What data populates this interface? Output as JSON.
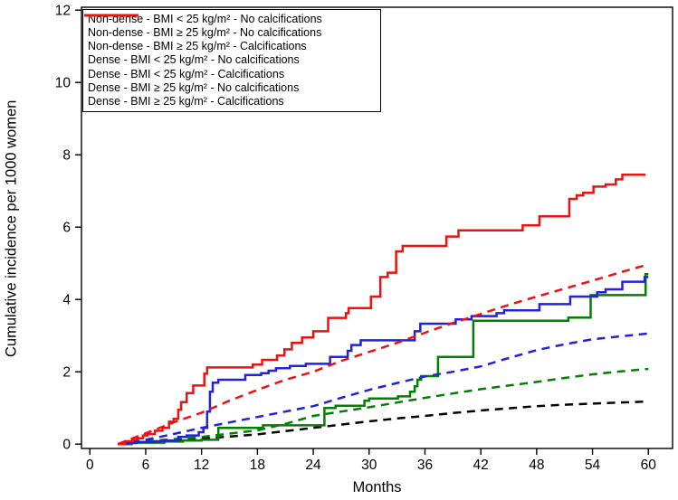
{
  "chart_data": {
    "type": "line",
    "title": "",
    "xlabel": "Months",
    "ylabel": "Cumulative incidence per 1000 women",
    "xlim": [
      -0.9,
      62.6
    ],
    "ylim": [
      -0.12,
      12.08
    ],
    "xticks": [
      0,
      6,
      12,
      18,
      24,
      30,
      36,
      42,
      48,
      54,
      60
    ],
    "yticks": [
      0,
      2,
      4,
      6,
      8,
      10,
      12
    ],
    "grid": false,
    "legend_position": "top-left",
    "frame_color": "#000000",
    "series": [
      {
        "key": "nondense-bmi-lt25-nocalc",
        "name": "Non-dense - BMI < 25 kg/m² - No calcifications",
        "color": "#000000",
        "dashed": true,
        "step": false,
        "points": [
          [
            3,
            0
          ],
          [
            6,
            0.06
          ],
          [
            9,
            0.1
          ],
          [
            12,
            0.15
          ],
          [
            15,
            0.21
          ],
          [
            18,
            0.27
          ],
          [
            21,
            0.36
          ],
          [
            24,
            0.45
          ],
          [
            27,
            0.54
          ],
          [
            30,
            0.63
          ],
          [
            33,
            0.71
          ],
          [
            36,
            0.78
          ],
          [
            39,
            0.86
          ],
          [
            42,
            0.93
          ],
          [
            45,
            0.99
          ],
          [
            48,
            1.05
          ],
          [
            51,
            1.09
          ],
          [
            54,
            1.12
          ],
          [
            57,
            1.15
          ],
          [
            60,
            1.18
          ]
        ]
      },
      {
        "key": "nondense-bmi-ge25-nocalc",
        "name": "Non-dense - BMI ≥ 25 kg/m² - No calcifications",
        "color": "#008000",
        "dashed": true,
        "step": false,
        "points": [
          [
            3,
            0
          ],
          [
            6,
            0.08
          ],
          [
            9,
            0.14
          ],
          [
            12,
            0.2
          ],
          [
            15,
            0.29
          ],
          [
            18,
            0.38
          ],
          [
            21,
            0.56
          ],
          [
            24,
            0.78
          ],
          [
            27,
            0.9
          ],
          [
            30,
            1.02
          ],
          [
            33,
            1.15
          ],
          [
            36,
            1.28
          ],
          [
            39,
            1.4
          ],
          [
            42,
            1.52
          ],
          [
            45,
            1.62
          ],
          [
            48,
            1.72
          ],
          [
            51,
            1.83
          ],
          [
            54,
            1.93
          ],
          [
            57,
            2.01
          ],
          [
            60,
            2.08
          ]
        ]
      },
      {
        "key": "nondense-bmi-ge25-calc",
        "name": "Non-dense - BMI ≥ 25 kg/m² - Calcifications",
        "color": "#008000",
        "dashed": false,
        "step": true,
        "points": [
          [
            3.5,
            0
          ],
          [
            4.5,
            0.04
          ],
          [
            8,
            0.07
          ],
          [
            10,
            0.1
          ],
          [
            12,
            0.12
          ],
          [
            13.8,
            0.45
          ],
          [
            18.6,
            0.52
          ],
          [
            25.2,
            1.0
          ],
          [
            26.4,
            1.06
          ],
          [
            29.5,
            1.2
          ],
          [
            30,
            1.26
          ],
          [
            33.1,
            1.32
          ],
          [
            34.4,
            1.45
          ],
          [
            34.9,
            1.6
          ],
          [
            35.2,
            1.78
          ],
          [
            35.6,
            1.88
          ],
          [
            37.4,
            2.41
          ],
          [
            41.2,
            3.41
          ],
          [
            51.4,
            3.5
          ],
          [
            53.8,
            4.12
          ],
          [
            59.7,
            4.7
          ],
          [
            60,
            4.7
          ]
        ]
      },
      {
        "key": "dense-bmi-lt25-nocalc",
        "name": "Dense - BMI < 25 kg/m² - No calcifications",
        "color": "#2222dd",
        "dashed": true,
        "step": false,
        "points": [
          [
            3,
            0
          ],
          [
            6,
            0.12
          ],
          [
            9,
            0.28
          ],
          [
            12,
            0.45
          ],
          [
            15,
            0.6
          ],
          [
            18,
            0.75
          ],
          [
            21,
            0.9
          ],
          [
            24,
            1.05
          ],
          [
            27,
            1.28
          ],
          [
            30,
            1.5
          ],
          [
            33,
            1.69
          ],
          [
            36,
            1.87
          ],
          [
            39,
            2.0
          ],
          [
            42,
            2.15
          ],
          [
            45,
            2.38
          ],
          [
            48,
            2.6
          ],
          [
            51,
            2.76
          ],
          [
            54,
            2.9
          ],
          [
            57,
            2.98
          ],
          [
            60,
            3.06
          ]
        ]
      },
      {
        "key": "dense-bmi-lt25-calc",
        "name": "Dense - BMI < 25 kg/m² - Calcifications",
        "color": "#2222dd",
        "dashed": false,
        "step": true,
        "points": [
          [
            3.2,
            0
          ],
          [
            4,
            0.03
          ],
          [
            5,
            0.06
          ],
          [
            7,
            0.08
          ],
          [
            8,
            0.1
          ],
          [
            9.5,
            0.2
          ],
          [
            10.4,
            0.24
          ],
          [
            11.7,
            0.33
          ],
          [
            12.2,
            0.45
          ],
          [
            12.6,
            0.9
          ],
          [
            12.9,
            1.45
          ],
          [
            13.2,
            1.7
          ],
          [
            13.8,
            1.78
          ],
          [
            16.7,
            1.91
          ],
          [
            18.4,
            1.96
          ],
          [
            19.2,
            2.03
          ],
          [
            20,
            2.1
          ],
          [
            21.5,
            2.16
          ],
          [
            23.2,
            2.22
          ],
          [
            25.8,
            2.41
          ],
          [
            27.7,
            2.58
          ],
          [
            28.1,
            2.74
          ],
          [
            29.1,
            2.87
          ],
          [
            34.9,
            3.12
          ],
          [
            35.5,
            3.33
          ],
          [
            39.3,
            3.45
          ],
          [
            41,
            3.54
          ],
          [
            43.7,
            3.62
          ],
          [
            44.5,
            3.7
          ],
          [
            48.3,
            3.87
          ],
          [
            51.6,
            4.08
          ],
          [
            54.5,
            4.2
          ],
          [
            55.4,
            4.28
          ],
          [
            57.2,
            4.49
          ],
          [
            59.6,
            4.62
          ],
          [
            60,
            4.62
          ]
        ]
      },
      {
        "key": "dense-bmi-ge25-nocalc",
        "name": "Dense - BMI ≥ 25 kg/m² - No calcifications",
        "color": "#ee1111",
        "dashed": true,
        "step": false,
        "points": [
          [
            3,
            0
          ],
          [
            6,
            0.3
          ],
          [
            9,
            0.6
          ],
          [
            12,
            0.87
          ],
          [
            15,
            1.2
          ],
          [
            18,
            1.5
          ],
          [
            21,
            1.78
          ],
          [
            24,
            2.0
          ],
          [
            27,
            2.3
          ],
          [
            30,
            2.55
          ],
          [
            33,
            2.8
          ],
          [
            36,
            3.08
          ],
          [
            39,
            3.35
          ],
          [
            42,
            3.6
          ],
          [
            45,
            3.85
          ],
          [
            48,
            4.08
          ],
          [
            51,
            4.3
          ],
          [
            54,
            4.52
          ],
          [
            57,
            4.75
          ],
          [
            60,
            4.97
          ]
        ]
      },
      {
        "key": "dense-bmi-ge25-calc",
        "name": "Dense - BMI ≥ 25 kg/m² - Calcifications",
        "color": "#ee1111",
        "dashed": false,
        "step": true,
        "points": [
          [
            3,
            0
          ],
          [
            3.8,
            0.08
          ],
          [
            4.6,
            0.12
          ],
          [
            5.1,
            0.16
          ],
          [
            5.7,
            0.24
          ],
          [
            6.2,
            0.28
          ],
          [
            7,
            0.37
          ],
          [
            7.8,
            0.45
          ],
          [
            8.5,
            0.62
          ],
          [
            9,
            0.7
          ],
          [
            9.5,
            0.95
          ],
          [
            9.8,
            1.16
          ],
          [
            10.4,
            1.41
          ],
          [
            11.1,
            1.62
          ],
          [
            12.3,
            1.95
          ],
          [
            12.6,
            2.12
          ],
          [
            17.5,
            2.2
          ],
          [
            18.5,
            2.33
          ],
          [
            20.1,
            2.45
          ],
          [
            20.9,
            2.62
          ],
          [
            21.7,
            2.8
          ],
          [
            22.8,
            2.95
          ],
          [
            24,
            3.12
          ],
          [
            25.6,
            3.49
          ],
          [
            27.5,
            3.62
          ],
          [
            27.8,
            3.76
          ],
          [
            30.2,
            4.08
          ],
          [
            31.2,
            4.62
          ],
          [
            32,
            4.74
          ],
          [
            32.9,
            5.33
          ],
          [
            33.6,
            5.48
          ],
          [
            38.3,
            5.74
          ],
          [
            39.6,
            5.91
          ],
          [
            46.5,
            6.05
          ],
          [
            48.3,
            6.3
          ],
          [
            51.5,
            6.78
          ],
          [
            52.3,
            6.88
          ],
          [
            53,
            6.95
          ],
          [
            54.1,
            7.12
          ],
          [
            55.4,
            7.18
          ],
          [
            56.5,
            7.32
          ],
          [
            57.2,
            7.45
          ],
          [
            59.7,
            7.45
          ]
        ]
      }
    ]
  }
}
